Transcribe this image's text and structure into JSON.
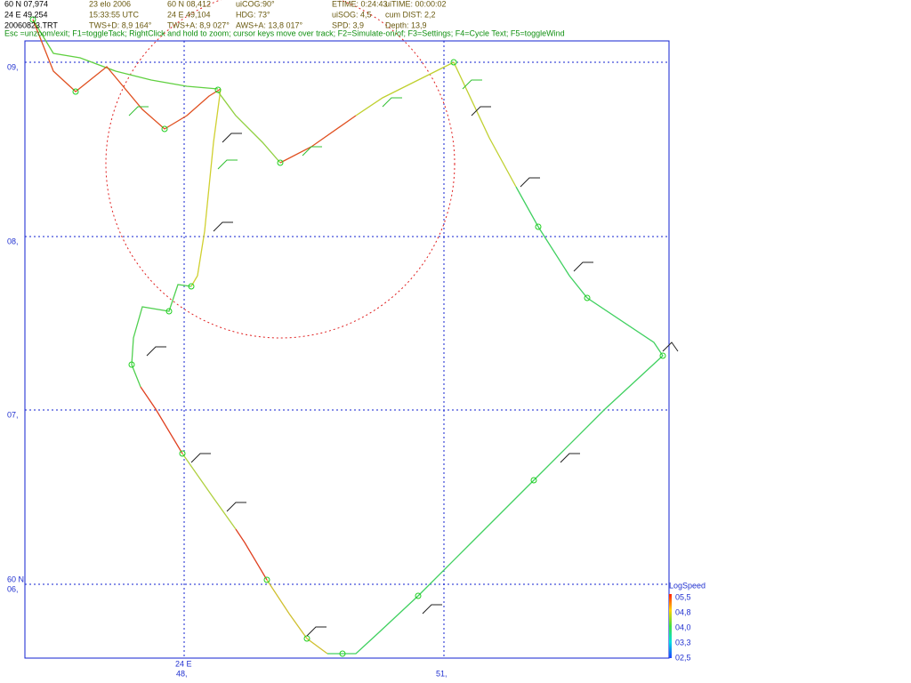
{
  "header": {
    "rows": [
      [
        "60 N 07,974",
        "23 elo 2006",
        "60 N 08,412",
        "uiCOG:90°",
        "ETIME: 0:24:43",
        "uiTIME: 00:00:02"
      ],
      [
        "24 E 49,254",
        "15:33:55  UTC",
        "24 E 49,104",
        "HDG: 73°",
        "uiSOG: 4,5",
        "cum DIST: 2,2"
      ],
      [
        "20060823.TRT",
        "TWS+D: 8,9 164°",
        "TWS+A: 8,9 027°",
        "AWS+A: 13,8 017°",
        "SPD: 3,9",
        "Depth: 13,9"
      ]
    ],
    "help": "Esc =unzoom/exit; F1=toggleTack; RightClick and hold to zoom; cursor keys move over track; F2=Simulate-on/of; F3=Settings; F4=Cycle Text; F5=toggleWind"
  },
  "axes": {
    "y_labels": [
      "09,",
      "08,",
      "07,",
      "06,"
    ],
    "y_prefix": "60 N",
    "x_labels": [
      "48,",
      "51,"
    ],
    "x_prefix": "24 E"
  },
  "legend": {
    "title": "LogSpeed",
    "labels": [
      "05,5",
      "04,8",
      "04,0",
      "03,3",
      "02,5"
    ]
  }
}
